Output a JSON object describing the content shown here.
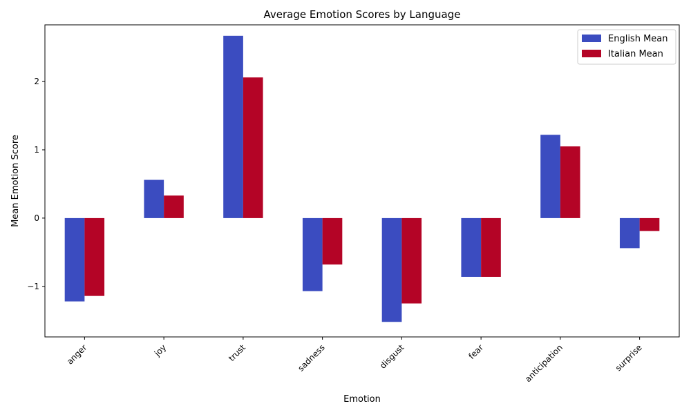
{
  "chart_data": {
    "type": "bar",
    "title": "Average Emotion Scores by Language",
    "xlabel": "Emotion",
    "ylabel": "Mean Emotion Score",
    "categories": [
      "anger",
      "joy",
      "trust",
      "sadness",
      "disgust",
      "fear",
      "anticipation",
      "surprise"
    ],
    "series": [
      {
        "name": "English Mean",
        "color": "#3b4cc0",
        "values": [
          -1.22,
          0.56,
          2.67,
          -1.07,
          -1.52,
          -0.86,
          1.22,
          -0.44
        ]
      },
      {
        "name": "Italian Mean",
        "color": "#b40426",
        "values": [
          -1.14,
          0.33,
          2.06,
          -0.68,
          -1.25,
          -0.86,
          1.05,
          -0.19
        ]
      }
    ],
    "ylim": [
      -1.74,
      2.83
    ],
    "yticks": [
      -1,
      0,
      1,
      2
    ],
    "ytick_labels": [
      "−1",
      "0",
      "1",
      "2"
    ],
    "grid": false,
    "legend_position": "top-right"
  }
}
